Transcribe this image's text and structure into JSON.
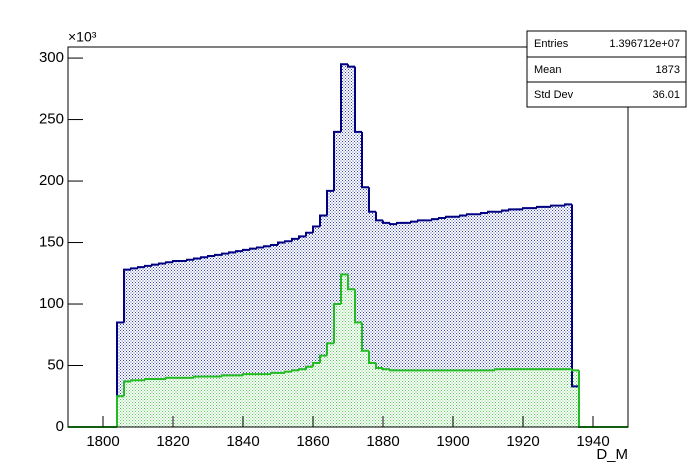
{
  "chart_data": {
    "type": "histogram",
    "x_label": "D_M",
    "y_multiplier": "×10³",
    "xlim": [
      1790,
      1950
    ],
    "ylim": [
      0,
      309
    ],
    "xticks": [
      1800,
      1820,
      1840,
      1860,
      1880,
      1900,
      1920,
      1940
    ],
    "yticks": [
      0,
      50,
      100,
      150,
      200,
      250,
      300
    ],
    "bins": [
      1790,
      1792,
      1794,
      1796,
      1798,
      1800,
      1802,
      1804,
      1806,
      1808,
      1810,
      1812,
      1814,
      1816,
      1818,
      1820,
      1822,
      1824,
      1826,
      1828,
      1830,
      1832,
      1834,
      1836,
      1838,
      1840,
      1842,
      1844,
      1846,
      1848,
      1850,
      1852,
      1854,
      1856,
      1858,
      1860,
      1862,
      1864,
      1866,
      1868,
      1870,
      1872,
      1874,
      1876,
      1878,
      1880,
      1882,
      1884,
      1886,
      1888,
      1890,
      1892,
      1894,
      1896,
      1898,
      1900,
      1902,
      1904,
      1906,
      1908,
      1910,
      1912,
      1914,
      1916,
      1918,
      1920,
      1922,
      1924,
      1926,
      1928,
      1930,
      1932,
      1934,
      1936,
      1938,
      1940,
      1942,
      1944,
      1946,
      1948,
      1950
    ],
    "series": [
      {
        "color": "#000080",
        "fill": "#3344aa",
        "values": [
          0,
          0,
          0,
          0,
          0,
          0,
          0,
          85,
          128,
          129,
          130,
          131,
          132,
          133,
          134,
          135,
          135,
          136,
          137,
          138,
          139,
          140,
          141,
          142,
          143,
          144,
          145,
          146,
          147,
          148,
          150,
          151,
          153,
          155,
          158,
          163,
          172,
          192,
          240,
          295,
          293,
          240,
          195,
          175,
          168,
          166,
          165,
          166,
          166,
          167,
          168,
          168,
          169,
          170,
          171,
          171,
          172,
          173,
          173,
          174,
          175,
          175,
          176,
          177,
          177,
          178,
          178,
          179,
          179,
          180,
          180,
          181,
          33,
          0,
          0,
          0,
          0,
          0,
          0,
          0
        ]
      },
      {
        "color": "#22bb22",
        "fill": "#55cc55",
        "values": [
          0,
          0,
          0,
          0,
          0,
          0,
          0,
          25,
          37,
          38,
          38,
          39,
          39,
          39,
          40,
          40,
          40,
          40,
          41,
          41,
          41,
          41,
          42,
          42,
          42,
          43,
          43,
          43,
          43,
          44,
          44,
          45,
          46,
          47,
          49,
          52,
          58,
          68,
          100,
          124,
          112,
          85,
          62,
          52,
          48,
          47,
          46,
          46,
          46,
          46,
          46,
          46,
          46,
          46,
          46,
          46,
          46,
          46,
          46,
          46,
          46,
          47,
          47,
          47,
          47,
          47,
          47,
          47,
          47,
          47,
          47,
          47,
          46,
          0,
          0,
          0,
          0,
          0,
          0,
          0
        ]
      }
    ],
    "stats": [
      {
        "label": "Entries",
        "value": "1.396712e+07"
      },
      {
        "label": "Mean",
        "value": "1873"
      },
      {
        "label": "Std Dev",
        "value": "36.01"
      }
    ]
  }
}
